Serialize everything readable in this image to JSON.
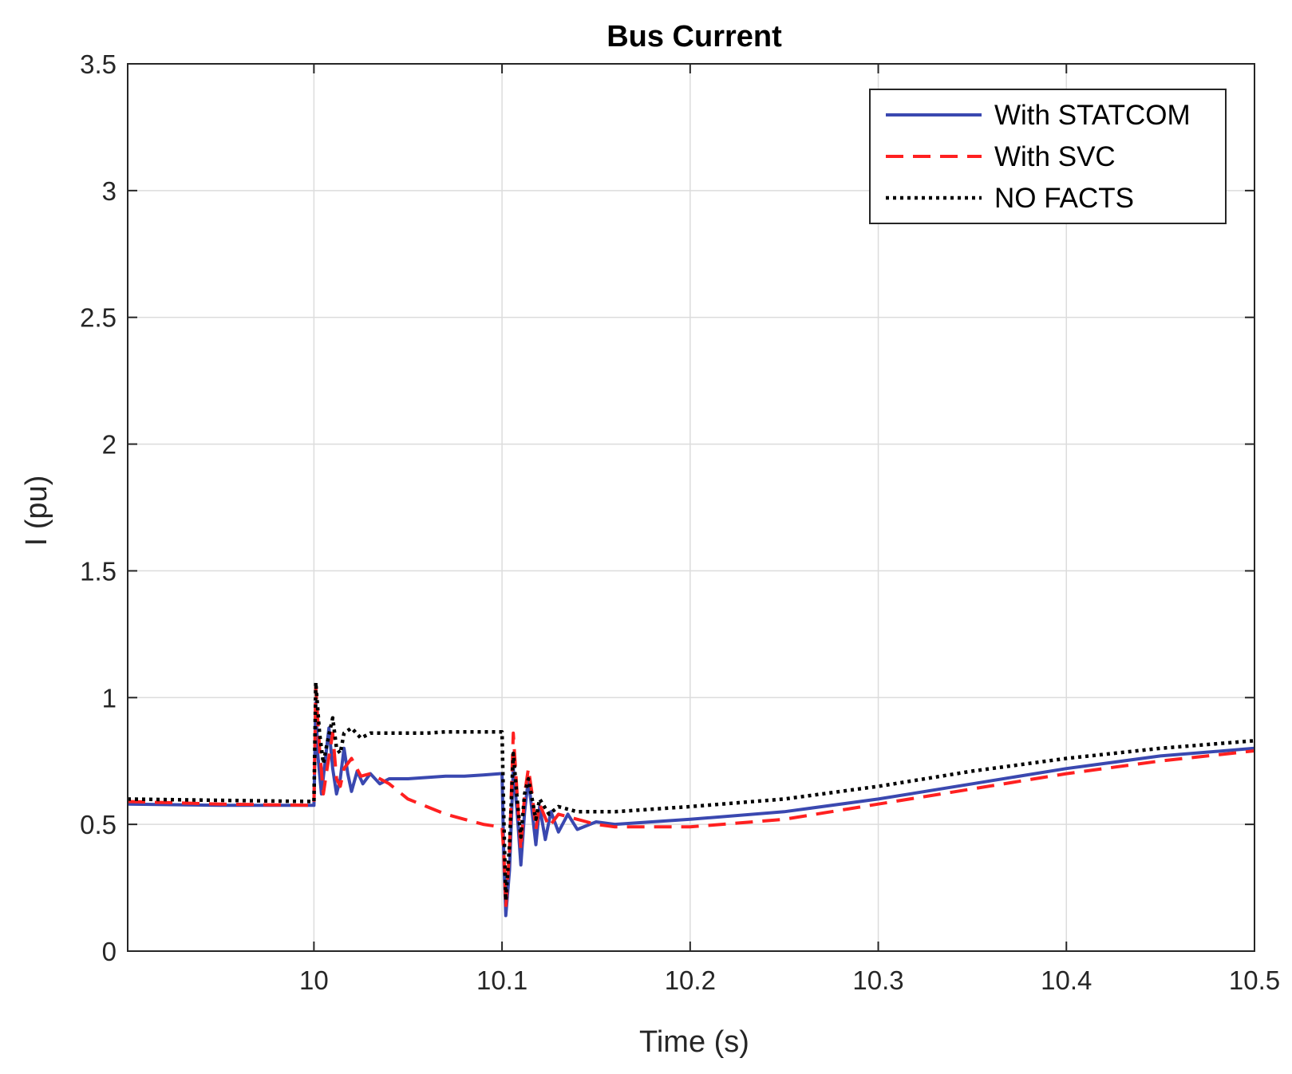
{
  "chart_data": {
    "type": "line",
    "title": "Bus Current",
    "xlabel": "Time (s)",
    "ylabel": "I (pu)",
    "xlim": [
      9.901,
      10.5
    ],
    "ylim": [
      0,
      3.5
    ],
    "xticks": [
      10,
      10.1,
      10.2,
      10.3,
      10.4,
      10.5
    ],
    "xtick_labels": [
      "10",
      "10.1",
      "10.2",
      "10.3",
      "10.4",
      "10.5"
    ],
    "yticks": [
      0,
      0.5,
      1,
      1.5,
      2,
      2.5,
      3,
      3.5
    ],
    "ytick_labels": [
      "0",
      "0.5",
      "1",
      "1.5",
      "2",
      "2.5",
      "3",
      "3.5"
    ],
    "grid": true,
    "legend_position": "top-right",
    "series": [
      {
        "name": "With STATCOM",
        "color": "#3a48b0",
        "style": "solid",
        "x": [
          9.901,
          9.95,
          9.999,
          10.0,
          10.001,
          10.002,
          10.004,
          10.006,
          10.008,
          10.01,
          10.012,
          10.014,
          10.016,
          10.018,
          10.02,
          10.023,
          10.026,
          10.03,
          10.035,
          10.04,
          10.05,
          10.06,
          10.07,
          10.08,
          10.09,
          10.099,
          10.1,
          10.101,
          10.102,
          10.104,
          10.106,
          10.108,
          10.11,
          10.112,
          10.114,
          10.116,
          10.118,
          10.12,
          10.123,
          10.126,
          10.13,
          10.135,
          10.14,
          10.15,
          10.16,
          10.2,
          10.25,
          10.3,
          10.35,
          10.4,
          10.45,
          10.5
        ],
        "y": [
          0.58,
          0.575,
          0.575,
          0.575,
          0.98,
          0.78,
          0.62,
          0.75,
          0.88,
          0.72,
          0.62,
          0.68,
          0.8,
          0.7,
          0.63,
          0.71,
          0.66,
          0.7,
          0.66,
          0.68,
          0.68,
          0.685,
          0.69,
          0.69,
          0.695,
          0.7,
          0.7,
          0.35,
          0.14,
          0.32,
          0.72,
          0.55,
          0.34,
          0.55,
          0.68,
          0.55,
          0.42,
          0.57,
          0.44,
          0.55,
          0.47,
          0.54,
          0.48,
          0.51,
          0.5,
          0.52,
          0.55,
          0.6,
          0.66,
          0.72,
          0.77,
          0.8
        ]
      },
      {
        "name": "With SVC",
        "color": "#ff2020",
        "style": "dashed",
        "x": [
          9.901,
          9.95,
          9.999,
          10.0,
          10.001,
          10.003,
          10.005,
          10.007,
          10.01,
          10.012,
          10.014,
          10.016,
          10.02,
          10.025,
          10.03,
          10.04,
          10.05,
          10.06,
          10.07,
          10.08,
          10.09,
          10.099,
          10.1,
          10.101,
          10.102,
          10.104,
          10.106,
          10.108,
          10.11,
          10.112,
          10.114,
          10.116,
          10.118,
          10.12,
          10.125,
          10.13,
          10.14,
          10.15,
          10.16,
          10.2,
          10.25,
          10.3,
          10.35,
          10.4,
          10.45,
          10.5
        ],
        "y": [
          0.59,
          0.58,
          0.575,
          0.575,
          1.04,
          0.8,
          0.62,
          0.72,
          0.86,
          0.68,
          0.65,
          0.72,
          0.76,
          0.69,
          0.7,
          0.66,
          0.6,
          0.57,
          0.54,
          0.52,
          0.5,
          0.49,
          0.49,
          0.38,
          0.17,
          0.4,
          0.86,
          0.62,
          0.4,
          0.62,
          0.72,
          0.62,
          0.48,
          0.58,
          0.49,
          0.54,
          0.52,
          0.5,
          0.49,
          0.49,
          0.52,
          0.58,
          0.64,
          0.7,
          0.75,
          0.79
        ]
      },
      {
        "name": "NO FACTS",
        "color": "#000000",
        "style": "dotted",
        "x": [
          9.901,
          9.95,
          9.999,
          10.0,
          10.001,
          10.003,
          10.005,
          10.007,
          10.01,
          10.012,
          10.014,
          10.016,
          10.02,
          10.025,
          10.03,
          10.04,
          10.05,
          10.06,
          10.07,
          10.08,
          10.09,
          10.099,
          10.1,
          10.101,
          10.102,
          10.104,
          10.106,
          10.108,
          10.11,
          10.112,
          10.114,
          10.116,
          10.118,
          10.12,
          10.125,
          10.13,
          10.14,
          10.15,
          10.16,
          10.2,
          10.25,
          10.3,
          10.35,
          10.4,
          10.45,
          10.5
        ],
        "y": [
          0.6,
          0.595,
          0.59,
          0.59,
          1.06,
          0.86,
          0.74,
          0.82,
          0.92,
          0.8,
          0.78,
          0.86,
          0.88,
          0.84,
          0.86,
          0.86,
          0.86,
          0.86,
          0.865,
          0.865,
          0.865,
          0.865,
          0.865,
          0.5,
          0.2,
          0.42,
          0.78,
          0.6,
          0.45,
          0.62,
          0.68,
          0.6,
          0.52,
          0.6,
          0.54,
          0.57,
          0.55,
          0.55,
          0.55,
          0.57,
          0.6,
          0.65,
          0.71,
          0.76,
          0.8,
          0.83
        ]
      }
    ]
  }
}
